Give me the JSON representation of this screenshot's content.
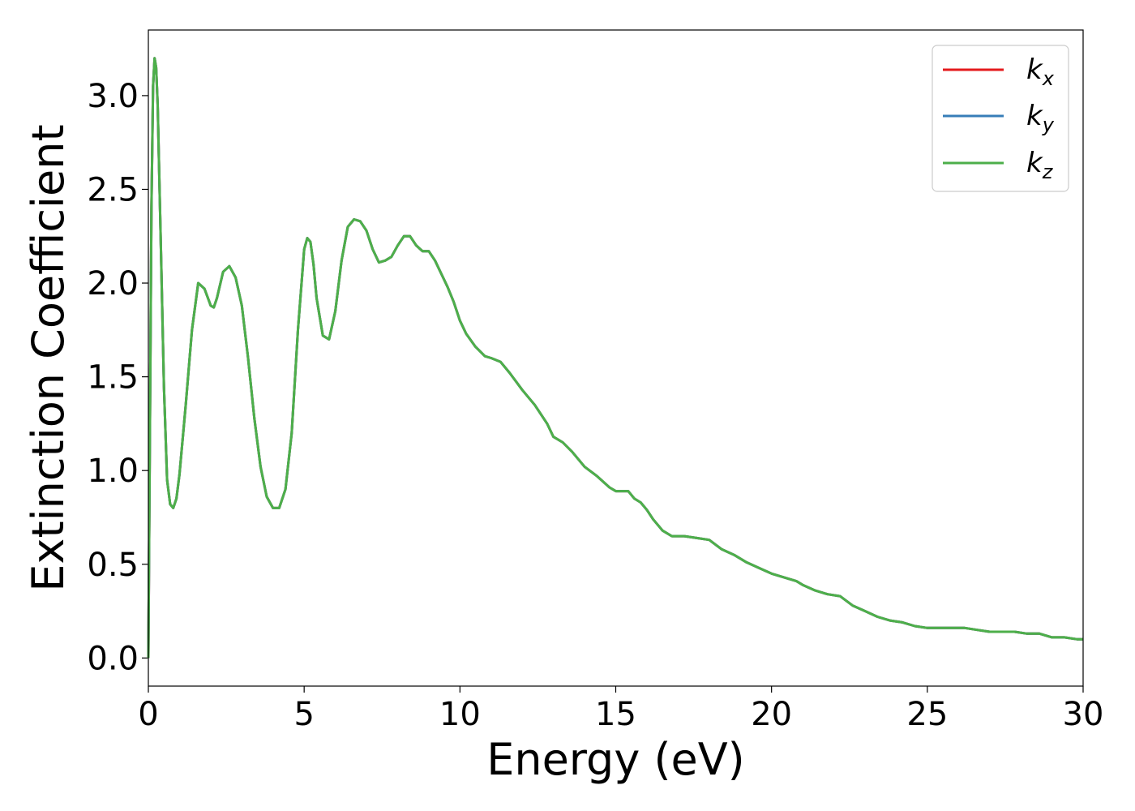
{
  "chart_data": {
    "type": "line",
    "xlabel": "Energy (eV)",
    "ylabel": "Extinction Coefficient",
    "xlim": [
      0,
      30
    ],
    "ylim": [
      -0.15,
      3.35
    ],
    "xticks": [
      0,
      5,
      10,
      15,
      20,
      25,
      30
    ],
    "xtick_labels": [
      "0",
      "5",
      "10",
      "15",
      "20",
      "25",
      "30"
    ],
    "yticks": [
      0.0,
      0.5,
      1.0,
      1.5,
      2.0,
      2.5,
      3.0
    ],
    "ytick_labels": [
      "0.0",
      "0.5",
      "1.0",
      "1.5",
      "2.0",
      "2.5",
      "3.0"
    ],
    "grid": false,
    "legend_position": "top-right",
    "x": [
      0,
      0.05,
      0.1,
      0.15,
      0.2,
      0.25,
      0.3,
      0.4,
      0.5,
      0.6,
      0.7,
      0.8,
      0.9,
      1.0,
      1.2,
      1.4,
      1.6,
      1.8,
      2.0,
      2.1,
      2.2,
      2.4,
      2.6,
      2.8,
      3.0,
      3.2,
      3.4,
      3.6,
      3.8,
      4.0,
      4.2,
      4.4,
      4.6,
      4.8,
      5.0,
      5.1,
      5.2,
      5.3,
      5.4,
      5.6,
      5.8,
      6.0,
      6.2,
      6.4,
      6.6,
      6.8,
      7.0,
      7.2,
      7.4,
      7.6,
      7.8,
      8.0,
      8.2,
      8.4,
      8.6,
      8.8,
      9.0,
      9.2,
      9.4,
      9.6,
      9.8,
      10.0,
      10.2,
      10.5,
      10.8,
      11.0,
      11.3,
      11.6,
      12.0,
      12.4,
      12.8,
      13.0,
      13.3,
      13.6,
      14.0,
      14.4,
      14.8,
      15.0,
      15.2,
      15.4,
      15.6,
      15.8,
      16.0,
      16.2,
      16.5,
      16.8,
      17.2,
      17.6,
      18.0,
      18.4,
      18.8,
      19.2,
      19.6,
      20.0,
      20.4,
      20.8,
      21.0,
      21.4,
      21.8,
      22.2,
      22.6,
      23.0,
      23.4,
      23.8,
      24.2,
      24.6,
      25.0,
      25.4,
      25.8,
      26.2,
      26.6,
      27.0,
      27.4,
      27.8,
      28.2,
      28.6,
      29.0,
      29.4,
      29.8,
      30.0
    ],
    "series": [
      {
        "name": "k_x",
        "color": "#e41a1c"
      },
      {
        "name": "k_y",
        "color": "#377eb8"
      },
      {
        "name": "k_z",
        "color": "#4daf4a"
      }
    ],
    "values": [
      0.0,
      1.2,
      2.4,
      3.05,
      3.2,
      3.15,
      2.95,
      2.2,
      1.45,
      0.95,
      0.82,
      0.8,
      0.85,
      0.98,
      1.35,
      1.75,
      2.0,
      1.97,
      1.88,
      1.87,
      1.92,
      2.06,
      2.09,
      2.03,
      1.88,
      1.6,
      1.28,
      1.02,
      0.86,
      0.8,
      0.8,
      0.9,
      1.2,
      1.75,
      2.18,
      2.24,
      2.22,
      2.1,
      1.92,
      1.72,
      1.7,
      1.85,
      2.12,
      2.3,
      2.34,
      2.33,
      2.28,
      2.18,
      2.11,
      2.12,
      2.14,
      2.2,
      2.25,
      2.25,
      2.2,
      2.17,
      2.17,
      2.12,
      2.05,
      1.98,
      1.9,
      1.8,
      1.73,
      1.66,
      1.61,
      1.6,
      1.58,
      1.52,
      1.43,
      1.35,
      1.25,
      1.18,
      1.15,
      1.1,
      1.02,
      0.97,
      0.91,
      0.89,
      0.89,
      0.89,
      0.85,
      0.83,
      0.79,
      0.74,
      0.68,
      0.65,
      0.65,
      0.64,
      0.63,
      0.58,
      0.55,
      0.51,
      0.48,
      0.45,
      0.43,
      0.41,
      0.39,
      0.36,
      0.34,
      0.33,
      0.28,
      0.25,
      0.22,
      0.2,
      0.19,
      0.17,
      0.16,
      0.16,
      0.16,
      0.16,
      0.15,
      0.14,
      0.14,
      0.14,
      0.13,
      0.13,
      0.11,
      0.11,
      0.1,
      0.1
    ]
  },
  "legend": {
    "items": [
      {
        "main": "k",
        "sub": "x",
        "color": "#e41a1c"
      },
      {
        "main": "k",
        "sub": "y",
        "color": "#377eb8"
      },
      {
        "main": "k",
        "sub": "z",
        "color": "#4daf4a"
      }
    ]
  }
}
